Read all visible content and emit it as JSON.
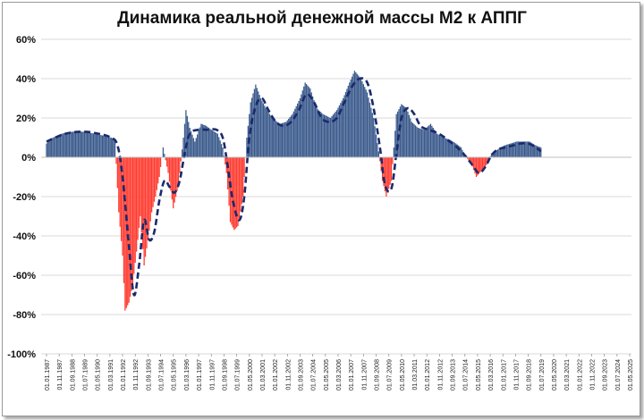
{
  "chart_data": {
    "type": "bar",
    "title": "Динамика реальной денежной массы М2 к АППГ",
    "xlabel": "",
    "ylabel": "",
    "ylim": [
      -100,
      60
    ],
    "y_ticks": [
      "-100%",
      "-80%",
      "-60%",
      "-40%",
      "-20%",
      "0%",
      "20%",
      "40%",
      "60%"
    ],
    "y_tick_values": [
      -100,
      -80,
      -60,
      -40,
      -20,
      0,
      20,
      40,
      60
    ],
    "x_range": [
      "1987-01-01",
      "2025-05-01"
    ],
    "x_ticks": [
      "01.01.1987",
      "01.11.1987",
      "01.09.1988",
      "01.07.1989",
      "01.05.1990",
      "01.03.1991",
      "01.01.1992",
      "01.11.1992",
      "01.09.1993",
      "01.07.1994",
      "01.05.1995",
      "01.03.1996",
      "01.01.1997",
      "01.11.1997",
      "01.09.1998",
      "01.07.1999",
      "01.05.2000",
      "01.03.2001",
      "01.01.2002",
      "01.11.2002",
      "01.09.2003",
      "01.07.2004",
      "01.05.2005",
      "01.03.2006",
      "01.01.2007",
      "01.11.2007",
      "01.09.2008",
      "01.07.2009",
      "01.05.2010",
      "01.03.2011",
      "01.01.2012",
      "01.11.2012",
      "01.09.2013",
      "01.07.2014",
      "01.05.2015",
      "01.03.2016",
      "01.01.2017",
      "01.11.2017",
      "01.09.2018",
      "01.07.2019",
      "01.05.2020",
      "01.03.2021",
      "01.01.2022",
      "01.11.2022",
      "01.09.2023",
      "01.07.2024",
      "01.05.2025"
    ],
    "grid": true,
    "colors": {
      "positive": "#3a5a8c",
      "negative": "#ff3b30",
      "trend": "#1a2a6c",
      "grid": "#d9d9d9"
    },
    "series": [
      {
        "kind": "bars",
        "points": [
          [
            "1987-01-01",
            7
          ],
          [
            "1987-06-01",
            10
          ],
          [
            "1988-01-01",
            12
          ],
          [
            "1988-09-01",
            13
          ],
          [
            "1989-06-01",
            13
          ],
          [
            "1990-03-01",
            12
          ],
          [
            "1990-10-01",
            11
          ],
          [
            "1991-04-01",
            10
          ],
          [
            "1991-07-01",
            9
          ],
          [
            "1991-10-01",
            -28
          ],
          [
            "1992-01-01",
            -50
          ],
          [
            "1992-03-01",
            -78
          ],
          [
            "1992-06-01",
            -74
          ],
          [
            "1992-09-01",
            -65
          ],
          [
            "1992-12-01",
            -48
          ],
          [
            "1993-03-01",
            -30
          ],
          [
            "1993-06-01",
            -55
          ],
          [
            "1993-09-01",
            -42
          ],
          [
            "1993-12-01",
            -28
          ],
          [
            "1994-03-01",
            -20
          ],
          [
            "1994-06-01",
            -10
          ],
          [
            "1994-09-01",
            5
          ],
          [
            "1995-01-01",
            -8
          ],
          [
            "1995-05-01",
            -26
          ],
          [
            "1995-09-01",
            -14
          ],
          [
            "1996-01-01",
            10
          ],
          [
            "1996-03-01",
            24
          ],
          [
            "1996-06-01",
            15
          ],
          [
            "1996-10-01",
            8
          ],
          [
            "1997-03-01",
            17
          ],
          [
            "1997-07-01",
            16
          ],
          [
            "1997-11-01",
            14
          ],
          [
            "1998-04-01",
            12
          ],
          [
            "1998-08-01",
            5
          ],
          [
            "1998-11-01",
            -8
          ],
          [
            "1999-02-01",
            -33
          ],
          [
            "1999-05-01",
            -37
          ],
          [
            "1999-08-01",
            -35
          ],
          [
            "1999-12-01",
            -20
          ],
          [
            "2000-03-01",
            10
          ],
          [
            "2000-06-01",
            28
          ],
          [
            "2000-10-01",
            37
          ],
          [
            "2001-02-01",
            30
          ],
          [
            "2001-06-01",
            25
          ],
          [
            "2001-11-01",
            20
          ],
          [
            "2002-05-01",
            17
          ],
          [
            "2002-10-01",
            18
          ],
          [
            "2003-03-01",
            22
          ],
          [
            "2003-09-01",
            30
          ],
          [
            "2004-01-01",
            38
          ],
          [
            "2004-05-01",
            35
          ],
          [
            "2004-10-01",
            25
          ],
          [
            "2005-03-01",
            22
          ],
          [
            "2005-09-01",
            20
          ],
          [
            "2006-02-01",
            24
          ],
          [
            "2006-07-01",
            30
          ],
          [
            "2006-12-01",
            38
          ],
          [
            "2007-04-01",
            44
          ],
          [
            "2007-09-01",
            40
          ],
          [
            "2008-02-01",
            33
          ],
          [
            "2008-07-01",
            20
          ],
          [
            "2008-11-01",
            3
          ],
          [
            "2009-02-01",
            -12
          ],
          [
            "2009-05-01",
            -20
          ],
          [
            "2009-09-01",
            -12
          ],
          [
            "2010-01-01",
            22
          ],
          [
            "2010-05-01",
            27
          ],
          [
            "2010-09-01",
            25
          ],
          [
            "2011-01-01",
            18
          ],
          [
            "2011-06-01",
            15
          ],
          [
            "2011-11-01",
            14
          ],
          [
            "2012-04-01",
            17
          ],
          [
            "2012-09-01",
            12
          ],
          [
            "2013-02-01",
            10
          ],
          [
            "2013-07-01",
            9
          ],
          [
            "2013-12-01",
            7
          ],
          [
            "2014-04-01",
            5
          ],
          [
            "2014-08-01",
            0
          ],
          [
            "2014-12-01",
            -3
          ],
          [
            "2015-04-01",
            -10
          ],
          [
            "2015-08-01",
            -7
          ],
          [
            "2015-12-01",
            -4
          ],
          [
            "2016-04-01",
            2
          ],
          [
            "2016-09-01",
            4
          ],
          [
            "2017-02-01",
            6
          ],
          [
            "2017-07-01",
            7
          ],
          [
            "2017-12-01",
            8
          ],
          [
            "2018-05-01",
            8
          ],
          [
            "2018-10-01",
            8
          ],
          [
            "2019-03-01",
            6
          ],
          [
            "2019-07-01",
            5
          ]
        ]
      },
      {
        "kind": "trend_dashed",
        "points": [
          [
            "1987-01-01",
            8
          ],
          [
            "1988-04-01",
            12
          ],
          [
            "1989-06-01",
            13
          ],
          [
            "1990-06-01",
            12
          ],
          [
            "1991-04-01",
            10
          ],
          [
            "1991-09-01",
            6
          ],
          [
            "1992-01-01",
            -10
          ],
          [
            "1992-06-01",
            -45
          ],
          [
            "1992-10-01",
            -70
          ],
          [
            "1993-02-01",
            -55
          ],
          [
            "1993-06-01",
            -32
          ],
          [
            "1993-10-01",
            -42
          ],
          [
            "1994-02-01",
            -38
          ],
          [
            "1994-06-01",
            -22
          ],
          [
            "1994-10-01",
            -12
          ],
          [
            "1995-02-01",
            -15
          ],
          [
            "1995-06-01",
            -18
          ],
          [
            "1995-10-01",
            -12
          ],
          [
            "1996-02-01",
            2
          ],
          [
            "1996-06-01",
            12
          ],
          [
            "1997-01-01",
            14
          ],
          [
            "1997-08-01",
            14
          ],
          [
            "1998-03-01",
            14
          ],
          [
            "1998-08-01",
            10
          ],
          [
            "1998-12-01",
            -5
          ],
          [
            "1999-04-01",
            -22
          ],
          [
            "1999-09-01",
            -32
          ],
          [
            "2000-01-01",
            -20
          ],
          [
            "2000-05-01",
            10
          ],
          [
            "2000-10-01",
            26
          ],
          [
            "2001-03-01",
            30
          ],
          [
            "2001-08-01",
            24
          ],
          [
            "2002-02-01",
            18
          ],
          [
            "2002-08-01",
            16
          ],
          [
            "2003-02-01",
            18
          ],
          [
            "2003-08-01",
            24
          ],
          [
            "2004-02-01",
            32
          ],
          [
            "2004-08-01",
            28
          ],
          [
            "2005-02-01",
            20
          ],
          [
            "2005-08-01",
            18
          ],
          [
            "2006-02-01",
            20
          ],
          [
            "2006-08-01",
            28
          ],
          [
            "2007-02-01",
            36
          ],
          [
            "2007-08-01",
            40
          ],
          [
            "2008-02-01",
            38
          ],
          [
            "2008-07-01",
            25
          ],
          [
            "2008-12-01",
            5
          ],
          [
            "2009-04-01",
            -14
          ],
          [
            "2009-09-01",
            -16
          ],
          [
            "2010-01-01",
            2
          ],
          [
            "2010-05-01",
            20
          ],
          [
            "2010-10-01",
            25
          ],
          [
            "2011-03-01",
            22
          ],
          [
            "2011-08-01",
            16
          ],
          [
            "2012-02-01",
            14
          ],
          [
            "2012-07-01",
            13
          ],
          [
            "2013-01-01",
            11
          ],
          [
            "2013-07-01",
            8
          ],
          [
            "2014-01-01",
            5
          ],
          [
            "2014-07-01",
            1
          ],
          [
            "2015-01-01",
            -4
          ],
          [
            "2015-06-01",
            -8
          ],
          [
            "2015-11-01",
            -5
          ],
          [
            "2016-04-01",
            1
          ],
          [
            "2016-09-01",
            4
          ],
          [
            "2017-03-01",
            5
          ],
          [
            "2017-09-01",
            6
          ],
          [
            "2018-03-01",
            7
          ],
          [
            "2018-09-01",
            7
          ],
          [
            "2019-03-01",
            5
          ],
          [
            "2019-07-01",
            3
          ]
        ]
      }
    ]
  }
}
